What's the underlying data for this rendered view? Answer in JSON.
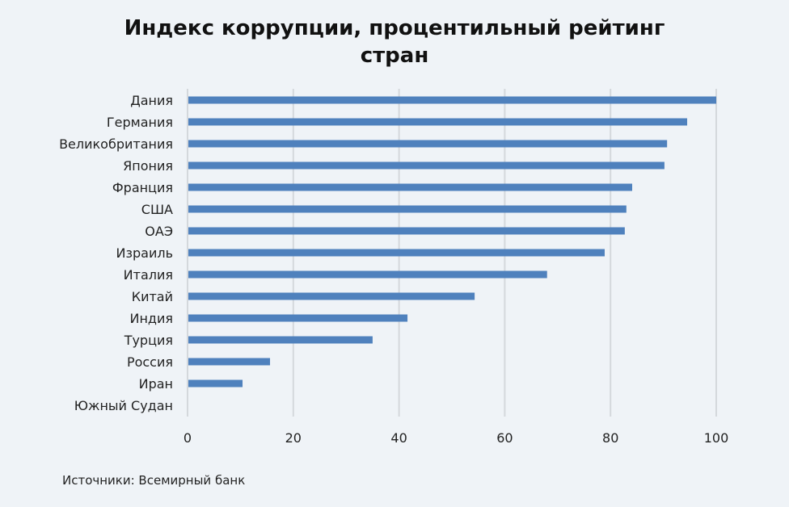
{
  "chart_data": {
    "type": "bar",
    "orientation": "horizontal",
    "title": "Индекс коррупции, процентильный рейтинг стран",
    "title_lines": [
      "Индекс коррупции, процентильный рейтинг",
      "стран"
    ],
    "categories": [
      "Дания",
      "Германия",
      "Великобритания",
      "Япония",
      "Франция",
      "США",
      "ОАЭ",
      "Израиль",
      "Италия",
      "Китай",
      "Индия",
      "Турция",
      "Россия",
      "Иран",
      "Южный Судан"
    ],
    "values": [
      100,
      94.5,
      90.7,
      90.2,
      84.1,
      83.0,
      82.7,
      78.9,
      68.0,
      54.3,
      41.6,
      35.0,
      15.6,
      10.4,
      0
    ],
    "xlim": [
      0,
      100
    ],
    "xticks": [
      0,
      20,
      40,
      60,
      80,
      100
    ],
    "xlabel": "",
    "ylabel": "",
    "grid": "vertical",
    "bar_color": "#4f81bd",
    "source": "Источники: Всемирный банк"
  }
}
